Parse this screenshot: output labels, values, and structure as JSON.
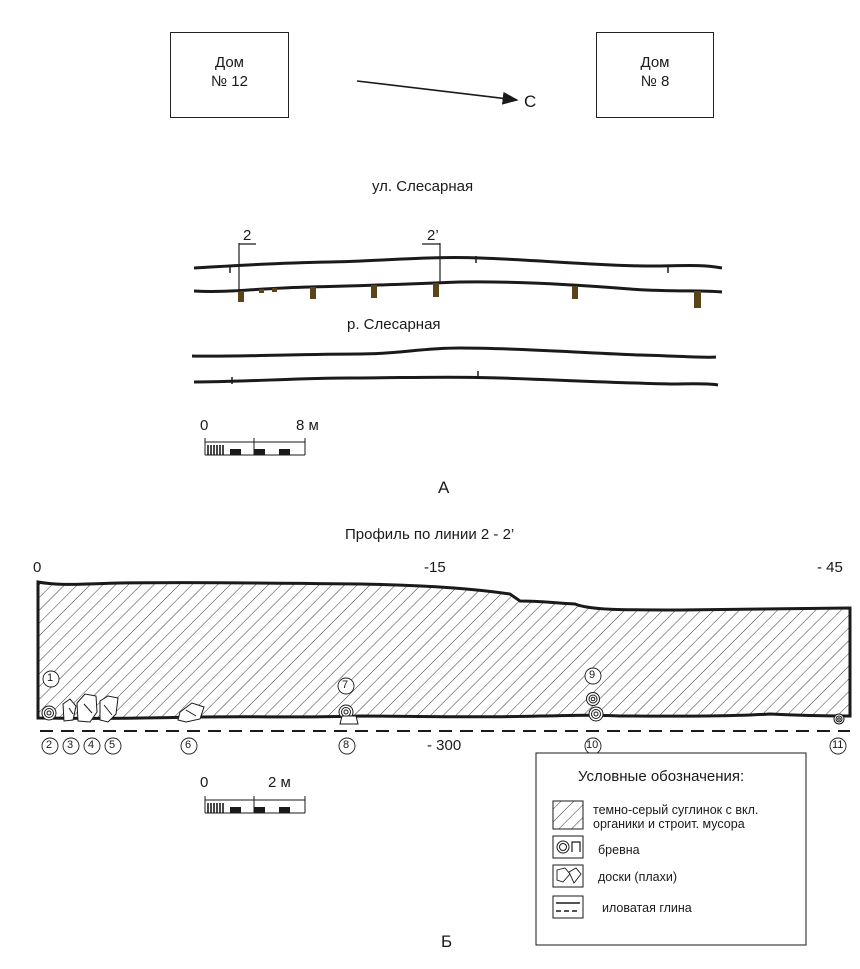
{
  "plan": {
    "house_left": {
      "line1": "Дом",
      "line2": "№ 12"
    },
    "house_right": {
      "line1": "Дом",
      "line2": "№ 8"
    },
    "north_label": "С",
    "street_label": "ул. Слесарная",
    "river_label": "р. Слесарная",
    "section_start_label": "2",
    "section_end_label": "2’",
    "scale_zero": "0",
    "scale_end": "8 м",
    "figure_letter": "А"
  },
  "profile": {
    "title": "Профиль по линии 2 - 2’",
    "elev_left": "0",
    "elev_mid": "-15",
    "elev_right": "- 45",
    "depth_label": "- 300",
    "markers_top": [
      "1",
      "7",
      "9"
    ],
    "markers_bottom": [
      "2",
      "3",
      "4",
      "5",
      "6",
      "8",
      "10",
      "11"
    ],
    "scale_zero": "0",
    "scale_end": "2 м",
    "figure_letter": "Б"
  },
  "legend": {
    "title": "Условные обозначения:",
    "items": [
      {
        "icon": "hatch-icon",
        "text_line1": "темно-серый суглинок с вкл.",
        "text_line2": "органики и строит. мусора"
      },
      {
        "icon": "log-icon",
        "text_line1": "бревна",
        "text_line2": ""
      },
      {
        "icon": "planks-icon",
        "text_line1": "доски (плахи)",
        "text_line2": ""
      },
      {
        "icon": "dashed-line-icon",
        "text_line1": "иловатая глина",
        "text_line2": ""
      }
    ]
  },
  "colors": {
    "ink": "#1a1a1a",
    "post": "#5a4418"
  }
}
